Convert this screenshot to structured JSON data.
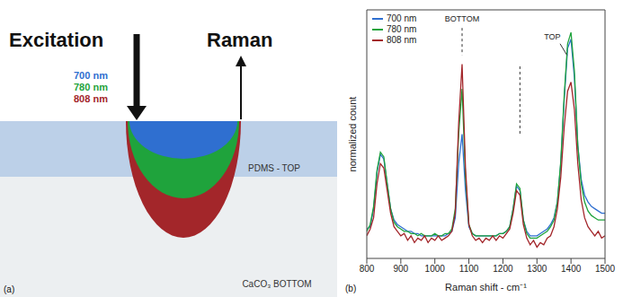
{
  "panel_labels": [
    "(a)",
    "(b)"
  ],
  "diagram": {
    "excitation": "Excitation",
    "raman": "Raman",
    "top_layer": "PDMS - TOP",
    "bottom_layer": "CaCO₃ BOTTOM"
  },
  "chart_data": {
    "type": "line",
    "x_label": "Raman shift - cm⁻¹",
    "y_label": "normalized count",
    "xlim": [
      800,
      1500
    ],
    "xticks": [
      800,
      900,
      1000,
      1100,
      1200,
      1300,
      1400,
      1500
    ],
    "ylim": [
      0,
      1.1
    ],
    "yticks": [
      0,
      0.1,
      0.2,
      0.3,
      0.4,
      0.5,
      0.6,
      0.7,
      0.8,
      0.9,
      1,
      1.1
    ],
    "tick_labels": "x",
    "legend": "upper left",
    "x": [
      800,
      810,
      820,
      830,
      840,
      850,
      860,
      870,
      880,
      890,
      900,
      910,
      920,
      930,
      940,
      950,
      960,
      970,
      980,
      990,
      1000,
      1010,
      1020,
      1030,
      1040,
      1050,
      1060,
      1070,
      1080,
      1090,
      1100,
      1110,
      1120,
      1130,
      1140,
      1150,
      1160,
      1170,
      1180,
      1190,
      1200,
      1210,
      1220,
      1230,
      1240,
      1250,
      1260,
      1270,
      1280,
      1290,
      1300,
      1310,
      1320,
      1330,
      1340,
      1350,
      1360,
      1370,
      1380,
      1390,
      1400,
      1410,
      1420,
      1430,
      1440,
      1450,
      1460,
      1470,
      1480,
      1490,
      1500
    ],
    "series": [
      {
        "name": "700 nm",
        "color": "#2f6fd0",
        "values": [
          0.13,
          0.14,
          0.22,
          0.38,
          0.46,
          0.44,
          0.33,
          0.22,
          0.17,
          0.15,
          0.14,
          0.13,
          0.12,
          0.12,
          0.11,
          0.11,
          0.1,
          0.1,
          0.1,
          0.1,
          0.1,
          0.1,
          0.1,
          0.1,
          0.11,
          0.12,
          0.18,
          0.42,
          0.55,
          0.3,
          0.14,
          0.11,
          0.1,
          0.1,
          0.1,
          0.1,
          0.1,
          0.1,
          0.1,
          0.11,
          0.11,
          0.12,
          0.14,
          0.22,
          0.32,
          0.3,
          0.17,
          0.12,
          0.1,
          0.1,
          0.1,
          0.11,
          0.12,
          0.13,
          0.15,
          0.18,
          0.25,
          0.42,
          0.7,
          0.93,
          0.97,
          0.8,
          0.5,
          0.35,
          0.28,
          0.25,
          0.23,
          0.22,
          0.21,
          0.2,
          0.2
        ]
      },
      {
        "name": "780 nm",
        "color": "#1fa33c",
        "values": [
          0.12,
          0.15,
          0.23,
          0.39,
          0.47,
          0.45,
          0.33,
          0.22,
          0.16,
          0.14,
          0.13,
          0.12,
          0.12,
          0.11,
          0.11,
          0.1,
          0.11,
          0.1,
          0.1,
          0.1,
          0.11,
          0.1,
          0.1,
          0.11,
          0.11,
          0.13,
          0.22,
          0.55,
          0.75,
          0.36,
          0.15,
          0.11,
          0.1,
          0.1,
          0.1,
          0.1,
          0.1,
          0.1,
          0.1,
          0.11,
          0.11,
          0.12,
          0.14,
          0.22,
          0.33,
          0.31,
          0.17,
          0.11,
          0.09,
          0.09,
          0.09,
          0.1,
          0.11,
          0.12,
          0.14,
          0.17,
          0.25,
          0.43,
          0.72,
          0.95,
          1.0,
          0.83,
          0.5,
          0.33,
          0.25,
          0.21,
          0.19,
          0.18,
          0.17,
          0.17,
          0.17
        ]
      },
      {
        "name": "808 nm",
        "color": "#a3262a",
        "values": [
          0.1,
          0.13,
          0.18,
          0.33,
          0.42,
          0.4,
          0.3,
          0.2,
          0.14,
          0.12,
          0.1,
          0.11,
          0.08,
          0.1,
          0.07,
          0.09,
          0.08,
          0.1,
          0.07,
          0.09,
          0.08,
          0.1,
          0.08,
          0.09,
          0.1,
          0.12,
          0.2,
          0.6,
          0.86,
          0.4,
          0.15,
          0.1,
          0.08,
          0.09,
          0.07,
          0.09,
          0.08,
          0.1,
          0.08,
          0.1,
          0.09,
          0.11,
          0.13,
          0.2,
          0.3,
          0.28,
          0.15,
          0.09,
          0.06,
          0.08,
          0.05,
          0.07,
          0.06,
          0.09,
          0.1,
          0.14,
          0.22,
          0.36,
          0.58,
          0.74,
          0.78,
          0.66,
          0.42,
          0.26,
          0.18,
          0.14,
          0.12,
          0.1,
          0.12,
          0.09,
          0.1
        ]
      }
    ],
    "annotations": [
      {
        "text": "BOTTOM",
        "x": 1080,
        "y": 1.06,
        "lines": [
          {
            "x": [
              1080,
              1080
            ],
            "y": [
              1.02,
              0.9
            ],
            "line_style": "dashed"
          }
        ]
      },
      {
        "text": "TOP",
        "x": 1345,
        "y": 0.98,
        "lines": [
          {
            "x": [
              1368,
              1388
            ],
            "y": [
              0.95,
              0.9
            ],
            "line_style": "solid"
          },
          {
            "x": [
              1250,
              1250
            ],
            "y": [
              0.85,
              0.55
            ],
            "line_style": "dashed"
          }
        ]
      }
    ]
  }
}
